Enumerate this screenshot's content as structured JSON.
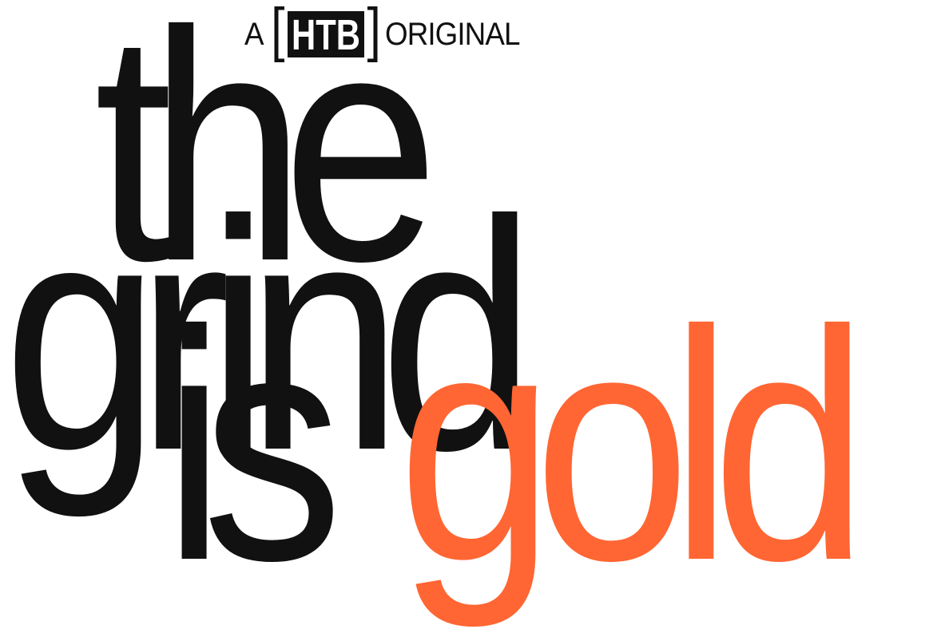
{
  "header": {
    "prefix": "A",
    "logo_text": "HTB",
    "suffix": "ORIGINAL"
  },
  "title": {
    "line1": "the",
    "line2": "grind",
    "line3_word1": "is",
    "line3_word2": "gold"
  },
  "colors": {
    "text": "#111111",
    "accent": "#ff6633",
    "background": "#ffffff"
  }
}
